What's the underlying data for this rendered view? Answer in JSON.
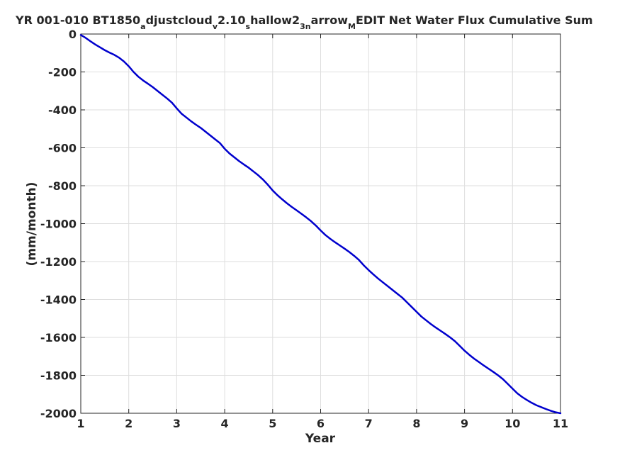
{
  "chart_data": {
    "type": "line",
    "title": {
      "main": "YR 001-010 BT1850",
      "parts": [
        {
          "text": "a",
          "sub": true
        },
        {
          "text": "djustcloud",
          "sub": false
        },
        {
          "text": "v",
          "sub": true
        },
        {
          "text": "2.10",
          "sub": false
        },
        {
          "text": "s",
          "sub": true
        },
        {
          "text": "hallow2",
          "sub": false
        },
        {
          "text": "3n",
          "sub": true
        },
        {
          "text": "arrow",
          "sub": false
        },
        {
          "text": "M",
          "sub": true
        },
        {
          "text": "EDIT Net Water Flux Cumulative Sum",
          "sub": false
        }
      ]
    },
    "xlabel": "Year",
    "ylabel": "(mm/month)",
    "xlim": [
      1,
      11
    ],
    "ylim": [
      -2000,
      0
    ],
    "xticks": [
      1,
      2,
      3,
      4,
      5,
      6,
      7,
      8,
      9,
      10,
      11
    ],
    "yticks": [
      0,
      -200,
      -400,
      -600,
      -800,
      -1000,
      -1200,
      -1400,
      -1600,
      -1800,
      -2000
    ],
    "grid": true,
    "line_color": "#0000cd",
    "series": [
      {
        "x": [
          1.0,
          1.1,
          1.2,
          1.3,
          1.4,
          1.5,
          1.6,
          1.7,
          1.8,
          1.9,
          2.0,
          2.1,
          2.2,
          2.3,
          2.4,
          2.5,
          2.6,
          2.7,
          2.8,
          2.9,
          3.0,
          3.1,
          3.2,
          3.3,
          3.4,
          3.5,
          3.6,
          3.7,
          3.8,
          3.9,
          4.0,
          4.1,
          4.2,
          4.3,
          4.4,
          4.5,
          4.6,
          4.7,
          4.8,
          4.9,
          5.0,
          5.1,
          5.2,
          5.3,
          5.4,
          5.5,
          5.6,
          5.7,
          5.8,
          5.9,
          6.0,
          6.1,
          6.2,
          6.3,
          6.4,
          6.5,
          6.6,
          6.7,
          6.8,
          6.9,
          7.0,
          7.1,
          7.2,
          7.3,
          7.4,
          7.5,
          7.6,
          7.7,
          7.8,
          7.9,
          8.0,
          8.1,
          8.2,
          8.3,
          8.4,
          8.5,
          8.6,
          8.7,
          8.8,
          8.9,
          9.0,
          9.1,
          9.2,
          9.3,
          9.4,
          9.5,
          9.6,
          9.7,
          9.8,
          9.9,
          10.0,
          10.1,
          10.2,
          10.3,
          10.4,
          10.5,
          10.6,
          10.7,
          10.8,
          10.9,
          11.0
        ],
        "values": [
          -5,
          -20,
          -38,
          -55,
          -70,
          -85,
          -98,
          -110,
          -125,
          -145,
          -170,
          -200,
          -225,
          -245,
          -262,
          -280,
          -300,
          -320,
          -340,
          -362,
          -392,
          -420,
          -440,
          -460,
          -478,
          -495,
          -515,
          -535,
          -555,
          -575,
          -605,
          -630,
          -650,
          -670,
          -688,
          -705,
          -725,
          -745,
          -768,
          -795,
          -825,
          -850,
          -872,
          -893,
          -912,
          -930,
          -948,
          -967,
          -987,
          -1010,
          -1036,
          -1060,
          -1080,
          -1098,
          -1115,
          -1132,
          -1150,
          -1170,
          -1192,
          -1220,
          -1245,
          -1268,
          -1290,
          -1310,
          -1330,
          -1350,
          -1370,
          -1390,
          -1415,
          -1440,
          -1465,
          -1490,
          -1510,
          -1530,
          -1548,
          -1565,
          -1582,
          -1600,
          -1620,
          -1645,
          -1670,
          -1692,
          -1712,
          -1730,
          -1748,
          -1765,
          -1782,
          -1800,
          -1820,
          -1845,
          -1870,
          -1895,
          -1914,
          -1930,
          -1945,
          -1958,
          -1968,
          -1978,
          -1987,
          -1995,
          -2000
        ]
      }
    ]
  }
}
